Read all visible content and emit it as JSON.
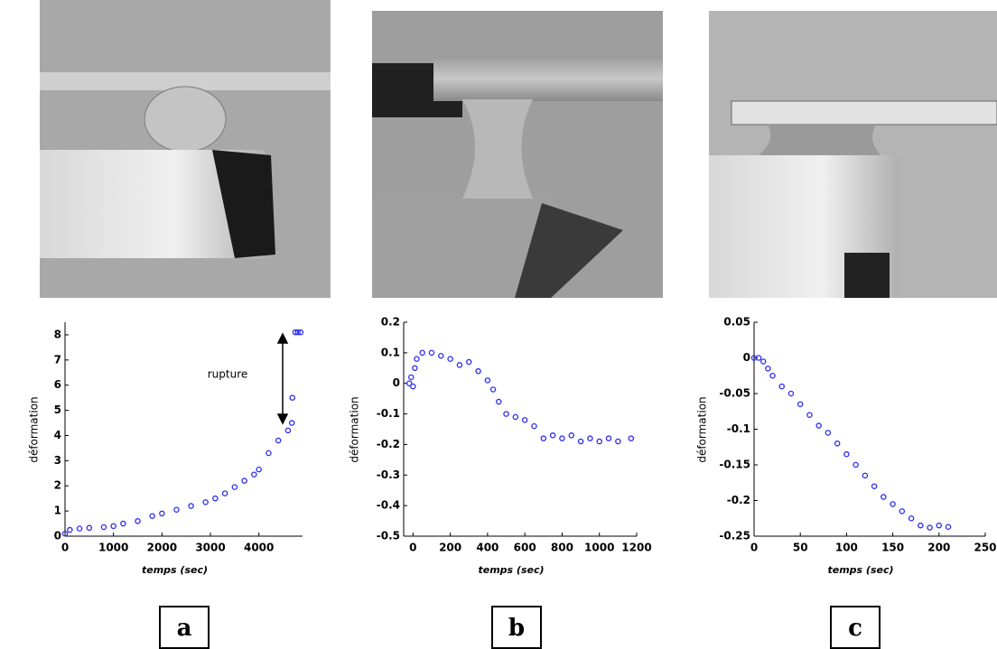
{
  "chart_data": [
    {
      "type": "scatter",
      "label": "a",
      "xlabel": "temps (sec)",
      "ylabel": "déformation",
      "annotation": "rupture",
      "color": "#2b2bf0",
      "x": [
        0,
        100,
        300,
        500,
        800,
        1000,
        1200,
        1500,
        1800,
        2000,
        2300,
        2600,
        2900,
        3100,
        3300,
        3500,
        3700,
        3900,
        4000,
        4200,
        4400,
        4600,
        4680,
        4690,
        4750,
        4800,
        4860
      ],
      "values": [
        0.1,
        0.25,
        0.3,
        0.33,
        0.36,
        0.4,
        0.5,
        0.6,
        0.8,
        0.9,
        1.05,
        1.2,
        1.35,
        1.5,
        1.7,
        1.95,
        2.2,
        2.45,
        2.65,
        3.3,
        3.8,
        4.2,
        4.5,
        5.5,
        8.1,
        8.1,
        8.1
      ],
      "xlim": [
        0,
        4900
      ],
      "ylim": [
        0,
        8.5
      ],
      "xticks": [
        0,
        1000,
        2000,
        3000,
        4000
      ],
      "yticks": [
        0,
        1,
        2,
        3,
        4,
        5,
        6,
        7,
        8
      ]
    },
    {
      "type": "scatter",
      "label": "b",
      "xlabel": "temps (sec)",
      "ylabel": "déformation",
      "color": "#2b2bf0",
      "x": [
        -20,
        -10,
        0,
        10,
        20,
        50,
        100,
        150,
        200,
        250,
        300,
        350,
        400,
        430,
        460,
        500,
        550,
        600,
        650,
        700,
        750,
        800,
        850,
        900,
        950,
        1000,
        1050,
        1100,
        1170
      ],
      "values": [
        0,
        0.02,
        -0.01,
        0.05,
        0.08,
        0.1,
        0.1,
        0.09,
        0.08,
        0.06,
        0.07,
        0.04,
        0.01,
        -0.02,
        -0.06,
        -0.1,
        -0.11,
        -0.12,
        -0.14,
        -0.18,
        -0.17,
        -0.18,
        -0.17,
        -0.19,
        -0.18,
        -0.19,
        -0.18,
        -0.19,
        -0.18
      ],
      "xlim": [
        -50,
        1200
      ],
      "ylim": [
        -0.5,
        0.2
      ],
      "xticks": [
        0,
        200,
        400,
        600,
        800,
        1000,
        1200
      ],
      "yticks": [
        -0.5,
        -0.4,
        -0.3,
        -0.2,
        -0.1,
        0,
        0.1,
        0.2
      ]
    },
    {
      "type": "scatter",
      "label": "c",
      "xlabel": "temps (sec)",
      "ylabel": "déformation",
      "color": "#2b2bf0",
      "x": [
        0,
        5,
        10,
        15,
        20,
        30,
        40,
        50,
        60,
        70,
        80,
        90,
        100,
        110,
        120,
        130,
        140,
        150,
        160,
        170,
        180,
        190,
        200,
        210
      ],
      "values": [
        0,
        0,
        -0.005,
        -0.015,
        -0.025,
        -0.04,
        -0.05,
        -0.065,
        -0.08,
        -0.095,
        -0.105,
        -0.12,
        -0.135,
        -0.15,
        -0.165,
        -0.18,
        -0.195,
        -0.205,
        -0.215,
        -0.225,
        -0.235,
        -0.238,
        -0.235,
        -0.237
      ],
      "xlim": [
        0,
        250
      ],
      "ylim": [
        -0.25,
        0.05
      ],
      "xticks": [
        0,
        50,
        100,
        150,
        200,
        250
      ],
      "yticks": [
        -0.25,
        -0.2,
        -0.15,
        -0.1,
        -0.05,
        0,
        0.05
      ]
    }
  ]
}
